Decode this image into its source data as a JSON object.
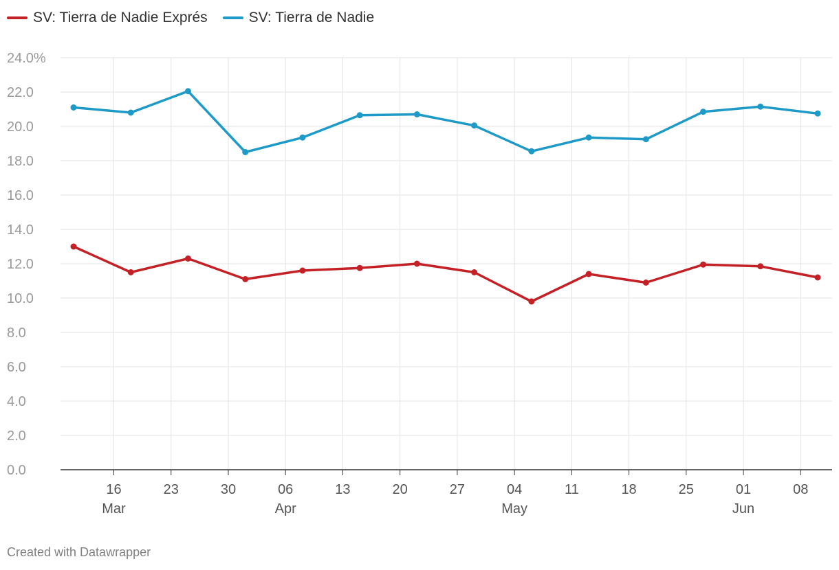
{
  "footer": {
    "credit": "Created with Datawrapper"
  },
  "chart_data": {
    "type": "line",
    "title": "",
    "xlabel": "",
    "ylabel": "",
    "ylim": [
      0,
      24
    ],
    "y_ticks": [
      "24.0%",
      "22.0",
      "20.0",
      "18.0",
      "16.0",
      "14.0",
      "12.0",
      "10.0",
      "8.0",
      "6.0",
      "4.0",
      "2.0",
      "0.0"
    ],
    "x_ticks": [
      {
        "day": "16",
        "month": "Mar"
      },
      {
        "day": "23",
        "month": ""
      },
      {
        "day": "30",
        "month": ""
      },
      {
        "day": "06",
        "month": "Apr"
      },
      {
        "day": "13",
        "month": ""
      },
      {
        "day": "20",
        "month": ""
      },
      {
        "day": "27",
        "month": ""
      },
      {
        "day": "04",
        "month": "May"
      },
      {
        "day": "11",
        "month": ""
      },
      {
        "day": "18",
        "month": ""
      },
      {
        "day": "25",
        "month": ""
      },
      {
        "day": "01",
        "month": "Jun"
      },
      {
        "day": "08",
        "month": ""
      }
    ],
    "x": [
      "Mar 11",
      "Mar 18",
      "Mar 25",
      "Apr 1",
      "Apr 8",
      "Apr 15",
      "Apr 22",
      "Apr 29",
      "May 6",
      "May 13",
      "May 20",
      "May 27",
      "Jun 3",
      "Jun 10"
    ],
    "series": [
      {
        "name": "SV: Tierra de Nadie Exprés",
        "color": "#c42127",
        "values": [
          13.0,
          11.5,
          12.3,
          11.1,
          11.6,
          11.75,
          12.0,
          11.5,
          9.8,
          11.4,
          10.9,
          11.95,
          11.85,
          11.2
        ]
      },
      {
        "name": "SV: Tierra de Nadie",
        "color": "#1d9ac7",
        "values": [
          21.1,
          20.8,
          22.05,
          18.5,
          19.35,
          20.65,
          20.7,
          20.05,
          18.55,
          19.35,
          19.25,
          20.85,
          21.15,
          20.75
        ]
      }
    ],
    "legend_position": "top-left",
    "grid": true
  }
}
